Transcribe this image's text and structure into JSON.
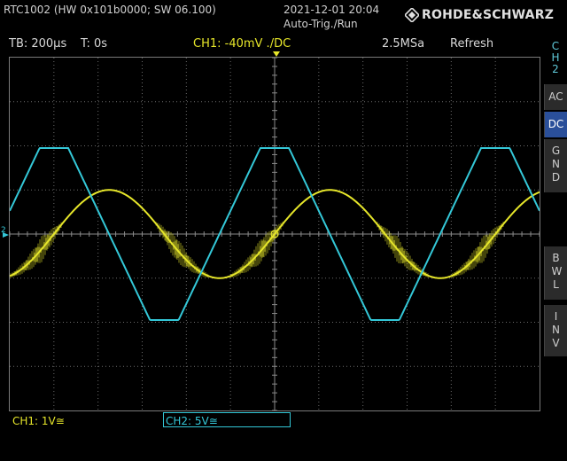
{
  "header": {
    "device_info": "RTC1002 (HW 0x101b0000; SW 06.100)",
    "datetime": "2021-12-01 20:04",
    "trigger_mode": "Auto-Trig./Run",
    "brand": "ROHDE&SCHWARZ"
  },
  "status": {
    "timebase": "TB: 200µs",
    "trigger_time": "T: 0s",
    "ch1_trigger": "CH1: -40mV ./DC",
    "sample_rate": "2.5MSa",
    "acq_mode": "Refresh"
  },
  "side_panel": {
    "channel": "CH2",
    "buttons": [
      {
        "label": "AC",
        "active": false
      },
      {
        "label": "DC",
        "active": true
      },
      {
        "label": "GND",
        "active": false
      },
      {
        "label": "BWL",
        "active": false
      },
      {
        "label": "INV",
        "active": false
      }
    ]
  },
  "bottom": {
    "ch1_scale": "CH1: 1V≅",
    "ch2_scale": "CH2: 5V≅"
  },
  "markers": {
    "ch2_ground": "2",
    "trigger_level": "T"
  },
  "colors": {
    "ch1": "#e6e62a",
    "ch2": "#34c8d8",
    "grid": "#6a6a6a",
    "active_button": "#2a4f9a"
  },
  "chart_data": {
    "type": "line",
    "x_divisions": 12,
    "y_divisions": 8,
    "series": [
      {
        "name": "CH1",
        "shape": "sine",
        "period_div": 5.0,
        "zero_cross_div": 6.0,
        "amplitude_div": 1.0,
        "offset_div": 0.0,
        "noise_band_div": 0.3
      },
      {
        "name": "CH2",
        "shape": "clipped-triangle",
        "period_div": 5.0,
        "zero_cross_div": 6.0,
        "amplitude_div": 1.95,
        "offset_div": 0.0
      }
    ]
  }
}
